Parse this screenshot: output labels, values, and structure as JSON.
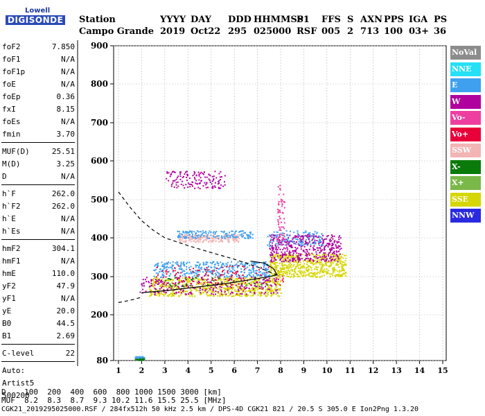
{
  "logo": {
    "line1": "Lowell",
    "line2": "DIGISONDE"
  },
  "header": {
    "labels": [
      "Station",
      "YYYY",
      "DAY",
      "DDD",
      "HHMMSS",
      "P1",
      "FFS",
      "S",
      "AXN",
      "PPS",
      "IGA",
      "PS"
    ],
    "values": [
      "Campo Grande",
      "2019",
      "Oct22",
      "295",
      "025000",
      "RSF",
      "005",
      "2",
      "713",
      "100",
      "03+",
      "36"
    ]
  },
  "params": [
    {
      "name": "foF2",
      "value": "7.850"
    },
    {
      "name": "foF1",
      "value": "N/A"
    },
    {
      "name": "foF1p",
      "value": "N/A"
    },
    {
      "name": "foE",
      "value": "N/A"
    },
    {
      "name": "foEp",
      "value": "0.36"
    },
    {
      "name": "fxI",
      "value": "8.15"
    },
    {
      "name": "foEs",
      "value": "N/A"
    },
    {
      "name": "fmin",
      "value": "3.70"
    },
    {
      "sep": true
    },
    {
      "name": "MUF(D)",
      "value": "25.51"
    },
    {
      "name": "M(D)",
      "value": "3.25"
    },
    {
      "name": "D",
      "value": "N/A"
    },
    {
      "sep": true
    },
    {
      "name": "h`F",
      "value": "262.0"
    },
    {
      "name": "h`F2",
      "value": "262.0"
    },
    {
      "name": "h`E",
      "value": "N/A"
    },
    {
      "name": "h`Es",
      "value": "N/A"
    },
    {
      "sep": true
    },
    {
      "name": "hmF2",
      "value": "304.1"
    },
    {
      "name": "hmF1",
      "value": "N/A"
    },
    {
      "name": "hmE",
      "value": "110.0"
    },
    {
      "name": "yF2",
      "value": "47.9"
    },
    {
      "name": "yF1",
      "value": "N/A"
    },
    {
      "name": "yE",
      "value": "20.0"
    },
    {
      "name": "B0",
      "value": "44.5"
    },
    {
      "name": "B1",
      "value": "2.69"
    },
    {
      "sep": true
    },
    {
      "name": "C-level",
      "value": "22"
    },
    {
      "sep": true
    },
    {
      "name": "Auto:",
      "value": ""
    },
    {
      "name": "Artist5",
      "value": ""
    },
    {
      "name": "500200",
      "value": ""
    }
  ],
  "legend": [
    {
      "label": "NoVal",
      "color": "#8c8c8c"
    },
    {
      "label": "NNE",
      "color": "#26e0f5"
    },
    {
      "label": "E",
      "color": "#3ea0ef"
    },
    {
      "label": "W",
      "color": "#b0009e"
    },
    {
      "label": "Vo-",
      "color": "#ee3ea0"
    },
    {
      "label": "Vo+",
      "color": "#e8003a"
    },
    {
      "label": "SSW",
      "color": "#f3b4b4"
    },
    {
      "label": "X-",
      "color": "#0a7a0a"
    },
    {
      "label": "X+",
      "color": "#7ab84a"
    },
    {
      "label": "SSE",
      "color": "#d6d600"
    },
    {
      "label": "NNW",
      "color": "#2a2ae0"
    }
  ],
  "bottom": {
    "line1": "D    100  200  400  600  800 1000 1500 3000 [km]",
    "line2": "MUF  8.2  8.3  8.7  9.3 10.2 11.6 15.5 25.5 [MHz]",
    "line3": "CGK21_2019295025000.RSF / 284fx512h 50 kHz 2.5 km / DPS-4D CGK21 821 / 20.5 S 305.0 E Ion2Png 1.3.20"
  },
  "chart_data": {
    "type": "scatter",
    "title": "",
    "xlabel": "",
    "ylabel": "",
    "xlim": [
      1,
      15
    ],
    "ylim": [
      80,
      900
    ],
    "x_ticks": [
      1,
      2,
      3,
      4,
      5,
      6,
      7,
      8,
      9,
      10,
      11,
      12,
      13,
      14,
      15
    ],
    "y_ticks": [
      80,
      200,
      300,
      400,
      500,
      600,
      700,
      800,
      900
    ],
    "grid": true,
    "clusters": [
      {
        "name": "low-echo",
        "color": "#0a7a0a",
        "x": [
          1.7,
          2.1
        ],
        "y": [
          82,
          88
        ],
        "n": 40
      },
      {
        "name": "low-echo-2",
        "color": "#3ea0ef",
        "x": [
          1.7,
          2.1
        ],
        "y": [
          86,
          92
        ],
        "n": 20
      },
      {
        "name": "F-trace-main",
        "color": "#d6d600",
        "x": [
          2.3,
          8.0
        ],
        "y": [
          250,
          300
        ],
        "n": 700
      },
      {
        "name": "F-trace-magenta",
        "color": "#b0009e",
        "x": [
          1.9,
          7.9
        ],
        "y": [
          255,
          300
        ],
        "n": 250
      },
      {
        "name": "F-trace-blue",
        "color": "#3ea0ef",
        "x": [
          2.5,
          7.5
        ],
        "y": [
          300,
          340
        ],
        "n": 380
      },
      {
        "name": "spread-red",
        "color": "#e8003a",
        "x": [
          2.5,
          8.2
        ],
        "y": [
          280,
          330
        ],
        "n": 120
      },
      {
        "name": "spread-green",
        "color": "#0a7a0a",
        "x": [
          3.0,
          7.5
        ],
        "y": [
          275,
          300
        ],
        "n": 40
      },
      {
        "name": "foF2-yellow",
        "color": "#d6d600",
        "x": [
          7.5,
          10.8
        ],
        "y": [
          300,
          360
        ],
        "n": 600
      },
      {
        "name": "foF2-magenta",
        "color": "#b0009e",
        "x": [
          7.5,
          10.6
        ],
        "y": [
          340,
          410
        ],
        "n": 450
      },
      {
        "name": "foF2-blue",
        "color": "#3ea0ef",
        "x": [
          7.4,
          9.8
        ],
        "y": [
          380,
          420
        ],
        "n": 120
      },
      {
        "name": "upper-pink",
        "color": "#f3b4b4",
        "x": [
          3.6,
          6.2
        ],
        "y": [
          390,
          410
        ],
        "n": 200
      },
      {
        "name": "upper-blue",
        "color": "#3ea0ef",
        "x": [
          3.5,
          6.8
        ],
        "y": [
          400,
          420
        ],
        "n": 160
      },
      {
        "name": "multi-hop",
        "color": "#b0009e",
        "x": [
          3.0,
          5.6
        ],
        "y": [
          530,
          575
        ],
        "n": 140
      },
      {
        "name": "cusp",
        "color": "#ee3ea0",
        "x": [
          7.85,
          8.15
        ],
        "y": [
          380,
          540
        ],
        "n": 60
      }
    ],
    "curves": [
      {
        "name": "solid-profile",
        "style": "solid",
        "points": [
          [
            2.0,
            258
          ],
          [
            3,
            263
          ],
          [
            4,
            270
          ],
          [
            5,
            277
          ],
          [
            6,
            285
          ],
          [
            7,
            295
          ],
          [
            7.85,
            304.1
          ],
          [
            7.7,
            320
          ],
          [
            7.3,
            335
          ],
          [
            6.7,
            340
          ]
        ]
      },
      {
        "name": "dashed-upper",
        "style": "dashed",
        "points": [
          [
            1.0,
            520
          ],
          [
            1.5,
            480
          ],
          [
            2.0,
            445
          ],
          [
            2.5,
            420
          ],
          [
            3,
            400
          ],
          [
            4,
            380
          ],
          [
            5,
            362
          ],
          [
            6,
            345
          ],
          [
            7,
            325
          ],
          [
            7.85,
            304.1
          ]
        ]
      },
      {
        "name": "dashed-lower",
        "style": "dashed",
        "points": [
          [
            1.0,
            232
          ],
          [
            1.5,
            238
          ],
          [
            2.0,
            246
          ]
        ]
      }
    ]
  }
}
